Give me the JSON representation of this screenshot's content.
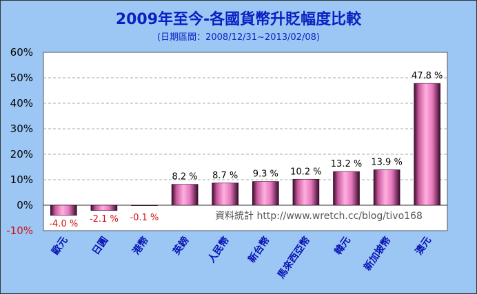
{
  "chart_data": {
    "type": "bar",
    "title": "2009年至今-各國貨幣升貶幅度比較",
    "subtitle": "(日期區間：2008/12/31~2013/02/08)",
    "categories": [
      "歐元",
      "日圓",
      "港幣",
      "英鎊",
      "人民幣",
      "新台幣",
      "馬來西亞幣",
      "韓元",
      "新加坡幣",
      "澳元"
    ],
    "values": [
      -4.0,
      -2.1,
      -0.1,
      8.2,
      8.7,
      9.3,
      10.2,
      13.2,
      13.9,
      47.8
    ],
    "value_labels": [
      "-4.0 %",
      "-2.1 %",
      "-0.1 %",
      "8.2 %",
      "8.7 %",
      "9.3 %",
      "10.2 %",
      "13.2 %",
      "13.9 %",
      "47.8 %"
    ],
    "ytick_labels": [
      "60%",
      "50%",
      "40%",
      "30%",
      "20%",
      "10%",
      "0%",
      "-10%"
    ],
    "ytick_values": [
      60,
      50,
      40,
      30,
      20,
      10,
      0,
      -10
    ],
    "ylim": [
      -10,
      60
    ],
    "grid": true,
    "legend": "none",
    "annotation": "資料統計 http://www.wretch.cc/blog/tivo168",
    "colors": {
      "background": "#9cc7f5",
      "plot": "#ffffff",
      "bar_light": "#ff9fd8",
      "bar_dark": "#3a0b2a",
      "negative_text": "#d01010",
      "category_text": "#0a14b4",
      "title_text": "#0b1fc2"
    }
  }
}
